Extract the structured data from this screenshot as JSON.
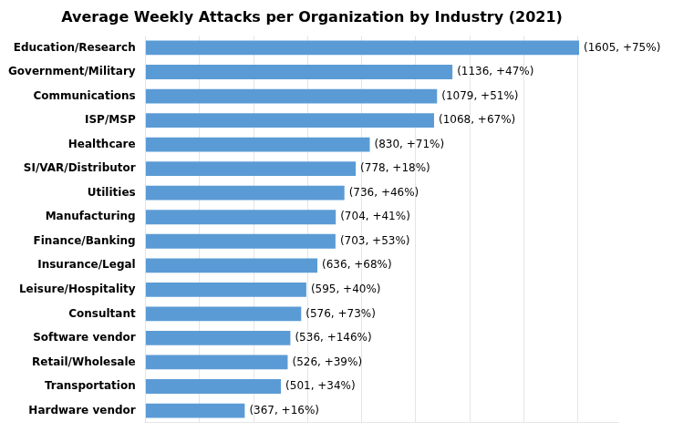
{
  "chart_data": {
    "type": "bar",
    "orientation": "horizontal",
    "title": "Average Weekly Attacks per Organization by Industry (2021)",
    "categories": [
      "Education/Research",
      "Government/Military",
      "Communications",
      "ISP/MSP",
      "Healthcare",
      "SI/VAR/Distributor",
      "Utilities",
      "Manufacturing",
      "Finance/Banking",
      "Insurance/Legal",
      "Leisure/Hospitality",
      "Consultant",
      "Software vendor",
      "Retail/Wholesale",
      "Transportation",
      "Hardware vendor"
    ],
    "values": [
      1605,
      1136,
      1079,
      1068,
      830,
      778,
      736,
      704,
      703,
      636,
      595,
      576,
      536,
      526,
      501,
      367
    ],
    "value_labels": [
      "(1605, +75%)",
      "(1136, +47%)",
      "(1079, +51%)",
      "(1068, +67%)",
      "(830, +71%)",
      "(778, +18%)",
      "(736, +46%)",
      "(704, +41%)",
      "(703, +53%)",
      "(636, +68%)",
      "(595, +40%)",
      "(576, +73%)",
      "(536, +146%)",
      "(526, +39%)",
      "(501, +34%)",
      "(367, +16%)"
    ],
    "color": "#5b9bd5",
    "xlim": [
      0,
      1750
    ],
    "xticks": [
      200,
      400,
      600,
      800,
      1000,
      1200,
      1400,
      1600
    ],
    "grid": true,
    "tick_labels": "y"
  }
}
